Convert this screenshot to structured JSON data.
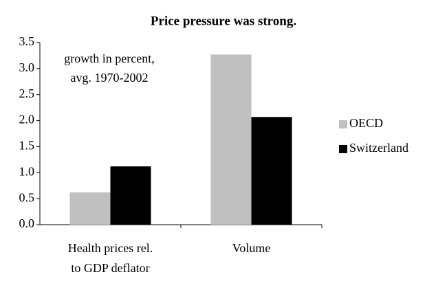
{
  "chart_data": {
    "type": "bar",
    "title": "Price pressure was strong.",
    "annotation": [
      "growth in percent,",
      "avg. 1970-2002"
    ],
    "categories": [
      [
        "Health prices rel.",
        "to GDP deflator"
      ],
      [
        "Volume"
      ]
    ],
    "series": [
      {
        "name": "OECD",
        "color": "#c0c0c0",
        "values": [
          0.62,
          3.27
        ]
      },
      {
        "name": "Switzerland",
        "color": "#000000",
        "values": [
          1.12,
          2.07
        ]
      }
    ],
    "ylim": [
      0,
      3.5
    ],
    "yticks": [
      {
        "value": 0,
        "label": "0.0"
      },
      0.5,
      {
        "value": 1,
        "label": "1.0"
      },
      1.5,
      {
        "value": 2,
        "label": "2.0"
      },
      2.5,
      {
        "value": 3,
        "label": "3.0"
      },
      3.5
    ],
    "grid": false,
    "legend": "right"
  }
}
